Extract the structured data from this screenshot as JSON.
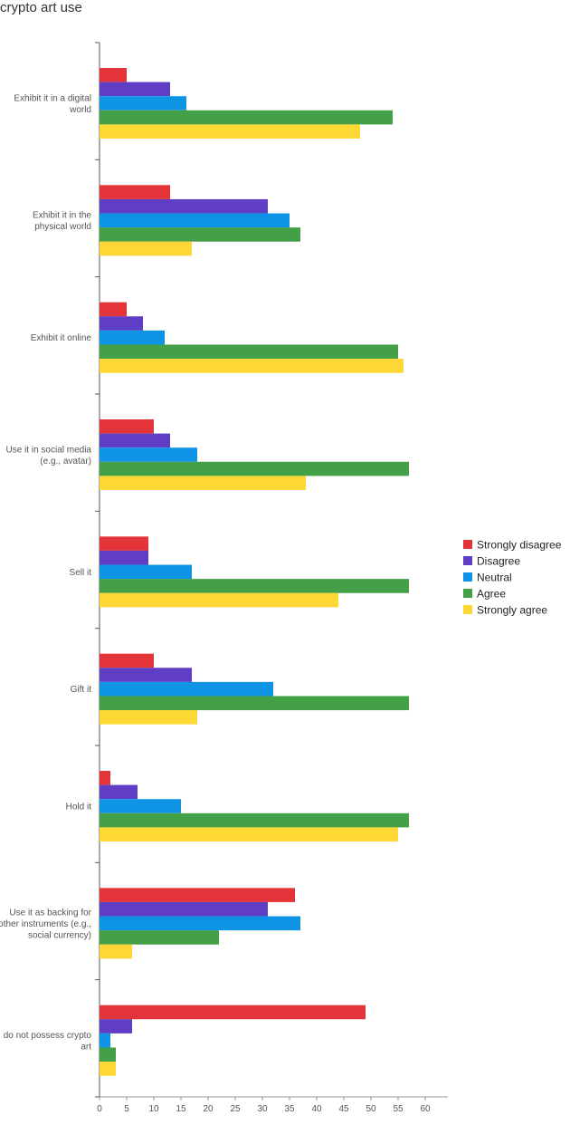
{
  "chart_data": {
    "type": "bar",
    "orientation": "horizontal",
    "title": "crypto art use",
    "categories": [
      [
        "Exhibit it in a digital",
        "world"
      ],
      [
        "Exhibit it in the",
        "physical world"
      ],
      [
        "Exhibit it online"
      ],
      [
        "Use it in social media",
        "(e.g., avatar)"
      ],
      [
        "Sell it"
      ],
      [
        "Gift it"
      ],
      [
        "Hold it"
      ],
      [
        "Use it as backing for",
        "other instruments (e.g.,",
        "social currency)"
      ],
      [
        "do not possess crypto",
        "art"
      ]
    ],
    "series": [
      {
        "name": "Strongly disagree",
        "color": "#e3343a",
        "values": [
          5,
          13,
          5,
          10,
          9,
          10,
          2,
          36,
          49
        ]
      },
      {
        "name": "Disagree",
        "color": "#5f3dc4",
        "values": [
          13,
          31,
          8,
          13,
          9,
          17,
          7,
          31,
          6
        ]
      },
      {
        "name": "Neutral",
        "color": "#0f93e5",
        "values": [
          16,
          35,
          12,
          18,
          17,
          32,
          15,
          37,
          2
        ]
      },
      {
        "name": "Agree",
        "color": "#43a047",
        "values": [
          54,
          37,
          55,
          57,
          57,
          57,
          57,
          22,
          3
        ]
      },
      {
        "name": "Strongly agree",
        "color": "#fdd835",
        "values": [
          48,
          17,
          56,
          38,
          44,
          18,
          55,
          6,
          3
        ]
      }
    ],
    "xlim": [
      0,
      62
    ],
    "xticks": [
      "0",
      "5",
      "10",
      "15",
      "20",
      "25",
      "30",
      "35",
      "40",
      "45",
      "50",
      "55",
      "60"
    ],
    "xlabel": "",
    "ylabel": "",
    "legend_position": "right"
  }
}
